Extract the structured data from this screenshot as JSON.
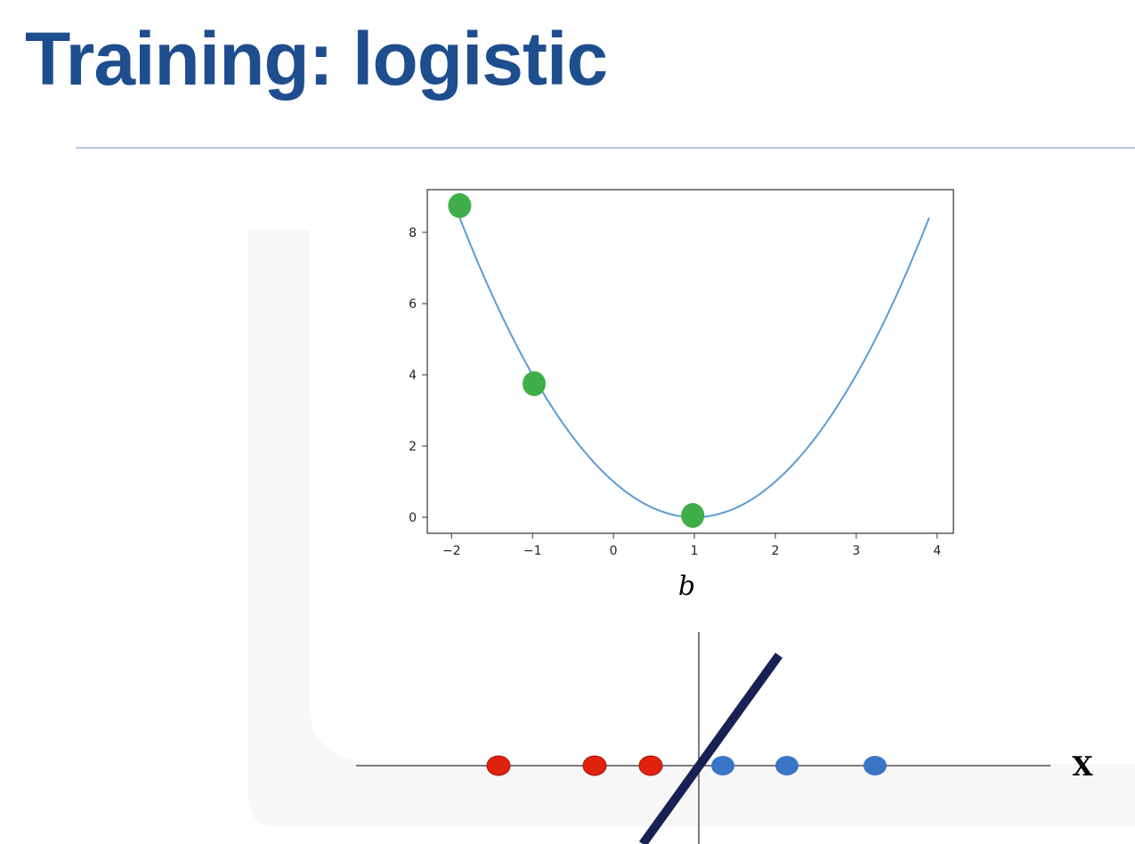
{
  "slide": {
    "title": "Training: logistic"
  },
  "chart_data": [
    {
      "type": "line",
      "title": "",
      "xlabel": "b",
      "ylabel": "",
      "xlim": [
        -2.3,
        4.2
      ],
      "ylim": [
        -0.45,
        9.2
      ],
      "xticks": [
        -2,
        -1,
        0,
        1,
        2,
        3,
        4
      ],
      "xtick_labels": [
        "−2",
        "−1",
        "0",
        "1",
        "2",
        "3",
        "4"
      ],
      "yticks": [
        0,
        2,
        4,
        6,
        8
      ],
      "ytick_labels": [
        "0",
        "2",
        "4",
        "6",
        "8"
      ],
      "grid": false,
      "series": [
        {
          "curve": "y = (b - 1)^2",
          "x_range": [
            -1.9,
            3.9
          ],
          "color": "#5b9bd5"
        }
      ],
      "highlighted_points": {
        "color": "#3fae49",
        "points": [
          {
            "x": -1.9,
            "y": 8.75
          },
          {
            "x": -0.98,
            "y": 3.75
          },
          {
            "x": 0.98,
            "y": 0.05
          }
        ]
      }
    },
    {
      "type": "scatter",
      "title": "",
      "xlabel": "X",
      "ylabel": "",
      "red_points": {
        "color": "#e0210d",
        "x": [
          -2.5,
          -1.3,
          -0.6
        ]
      },
      "blue_points": {
        "color": "#3a74c7",
        "x": [
          0.3,
          1.1,
          2.2
        ]
      },
      "decision_line": {
        "color": "#172154"
      }
    }
  ]
}
